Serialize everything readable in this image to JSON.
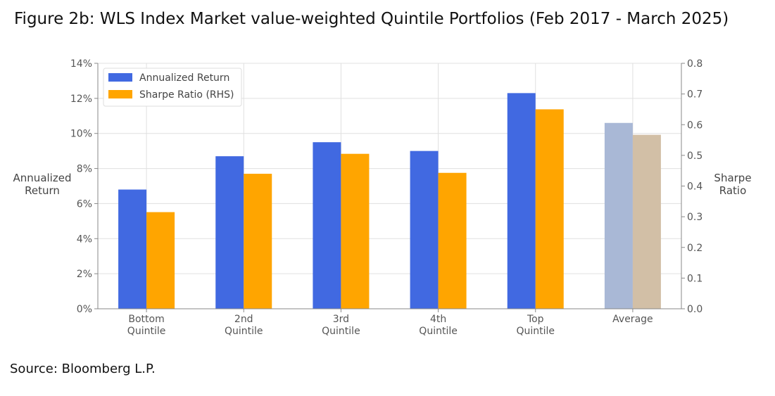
{
  "title": "Figure 2b: WLS Index Market value-weighted Quintile Portfolios (Feb 2017 - March 2025)",
  "source": "Source: Bloomberg L.P.",
  "chart_data": {
    "type": "bar",
    "categories": [
      [
        "Bottom",
        "Quintile"
      ],
      [
        "2nd",
        "Quintile"
      ],
      [
        "3rd",
        "Quintile"
      ],
      [
        "4th",
        "Quintile"
      ],
      [
        "Top",
        "Quintile"
      ],
      [
        "Average"
      ]
    ],
    "series": [
      {
        "name": "Annualized Return",
        "axis": "left",
        "values": [
          6.8,
          8.7,
          9.5,
          9.0,
          12.3,
          10.6
        ],
        "color": "#4169E1",
        "highlight_colors": {
          "Average": "#A9B8D6"
        }
      },
      {
        "name": "Sharpe Ratio (RHS)",
        "axis": "right",
        "values": [
          0.315,
          0.44,
          0.505,
          0.443,
          0.65,
          0.567
        ],
        "color": "#FFA500",
        "highlight_colors": {
          "Average": "#D2BFA6"
        }
      }
    ],
    "y_left": {
      "label": [
        "Annualized",
        "Return"
      ],
      "range": [
        0,
        14
      ],
      "ticks": [
        "0%",
        "2%",
        "4%",
        "6%",
        "8%",
        "10%",
        "12%",
        "14%"
      ],
      "tick_values": [
        0,
        2,
        4,
        6,
        8,
        10,
        12,
        14
      ]
    },
    "y_right": {
      "label": [
        "Sharpe",
        "Ratio"
      ],
      "range": [
        0,
        0.8
      ],
      "ticks": [
        "0.0",
        "0.1",
        "0.2",
        "0.3",
        "0.4",
        "0.5",
        "0.6",
        "0.7",
        "0.8"
      ],
      "tick_values": [
        0,
        0.1,
        0.2,
        0.3,
        0.4,
        0.5,
        0.6,
        0.7,
        0.8
      ]
    },
    "grid": true,
    "legend": "top-left"
  }
}
